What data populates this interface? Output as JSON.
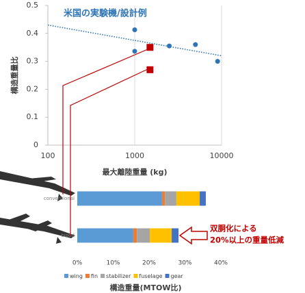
{
  "chart_data": [
    {
      "type": "scatter",
      "title": "米国の実験機/設計例",
      "title_color": "#2e75b6",
      "xlabel": "最大離陸重量 (kg)",
      "ylabel": "構造重量比",
      "log_x": true,
      "grid_x": true,
      "xlim": [
        100,
        10000
      ],
      "xticks": [
        100,
        1000,
        10000
      ],
      "ylim": [
        0,
        0.5
      ],
      "yticks": [
        0,
        0.1,
        0.2,
        0.3,
        0.4,
        0.5
      ],
      "series": [
        {
          "color": "#2e75b6",
          "marker": "circle",
          "x": [
            1000,
            1000,
            2500,
            5000,
            9000
          ],
          "values": [
            0.413,
            0.336,
            0.355,
            0.36,
            0.3
          ]
        },
        {
          "color": "#c00000",
          "marker": "square",
          "x": [
            1500,
            1500
          ],
          "values": [
            0.35,
            0.27
          ]
        }
      ],
      "trend": {
        "color": "#2e75b6",
        "x": [
          100,
          10000
        ],
        "values": [
          0.43,
          0.32
        ]
      }
    },
    {
      "type": "bar",
      "horizontal": true,
      "stacked": true,
      "xlabel": "構造重量(MTOW比)",
      "categories": [
        "conventional",
        "bipod"
      ],
      "xlim": [
        0,
        40
      ],
      "xticks": [
        {
          "value": 0,
          "label": "0%"
        },
        {
          "value": 10,
          "label": "10%"
        },
        {
          "value": 20,
          "label": "20%"
        },
        {
          "value": 30,
          "label": "30%"
        },
        {
          "value": 40,
          "label": "40%"
        }
      ],
      "legend": "bottom",
      "series": [
        {
          "name": "wing",
          "color": "#5b9bd5",
          "values": [
            23.6,
            15.6
          ]
        },
        {
          "name": "fin",
          "color": "#ed7d31",
          "values": [
            0.8,
            1.0
          ]
        },
        {
          "name": "stabilizer",
          "color": "#a5a5a5",
          "values": [
            3.2,
            3.6
          ]
        },
        {
          "name": "fuselage",
          "color": "#ffc000",
          "values": [
            6.5,
            6.1
          ]
        },
        {
          "name": "gear",
          "color": "#4472c4",
          "values": [
            1.7,
            1.9
          ]
        }
      ],
      "annotation": {
        "color": "#c00000",
        "lines": [
          "双胴化による",
          "20%以上の重量低減"
        ]
      }
    }
  ]
}
